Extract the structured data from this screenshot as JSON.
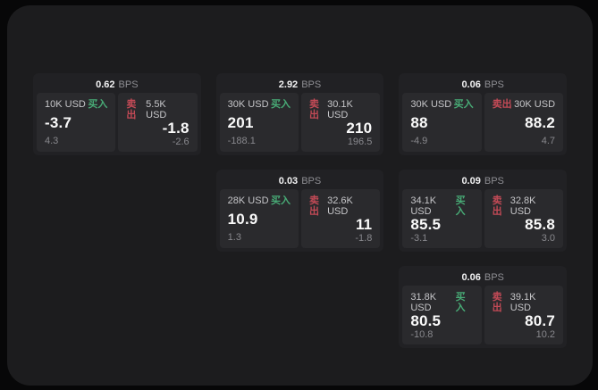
{
  "page": {
    "background": "#070708",
    "panel_background": "#1c1c1e",
    "card_background": "#212124",
    "quote_panel_background": "#2a2a2d"
  },
  "colors": {
    "buy_accent": "#48ab76",
    "sell_accent": "#c34a56",
    "price_text": "#fafafa",
    "muted_text": "#88888d"
  },
  "labels": {
    "bps_unit": "BPS",
    "buy": "买入",
    "sell": "卖出"
  },
  "cards": [
    {
      "row": 1,
      "col": 1,
      "bps_value": "0.62",
      "bps_unit": "BPS",
      "buy": {
        "size": "10K USD",
        "side_label": "买入",
        "price": "-3.7",
        "delta": "4.3"
      },
      "sell": {
        "size": "5.5K USD",
        "side_label": "卖出",
        "price": "-1.8",
        "delta": "-2.6"
      }
    },
    {
      "row": 1,
      "col": 2,
      "bps_value": "2.92",
      "bps_unit": "BPS",
      "buy": {
        "size": "30K USD",
        "side_label": "买入",
        "price": "201",
        "delta": "-188.1"
      },
      "sell": {
        "size": "30.1K USD",
        "side_label": "卖出",
        "price": "210",
        "delta": "196.5"
      }
    },
    {
      "row": 1,
      "col": 3,
      "bps_value": "0.06",
      "bps_unit": "BPS",
      "buy": {
        "size": "30K USD",
        "side_label": "买入",
        "price": "88",
        "delta": "-4.9"
      },
      "sell": {
        "size": "30K USD",
        "side_label": "卖出",
        "price": "88.2",
        "delta": "4.7"
      }
    },
    {
      "row": 2,
      "col": 2,
      "bps_value": "0.03",
      "bps_unit": "BPS",
      "buy": {
        "size": "28K USD",
        "side_label": "买入",
        "price": "10.9",
        "delta": "1.3"
      },
      "sell": {
        "size": "32.6K USD",
        "side_label": "卖出",
        "price": "11",
        "delta": "-1.8"
      }
    },
    {
      "row": 2,
      "col": 3,
      "bps_value": "0.09",
      "bps_unit": "BPS",
      "buy": {
        "size": "34.1K USD",
        "side_label": "买入",
        "price": "85.5",
        "delta": "-3.1"
      },
      "sell": {
        "size": "32.8K USD",
        "side_label": "卖出",
        "price": "85.8",
        "delta": "3.0"
      }
    },
    {
      "row": 3,
      "col": 3,
      "bps_value": "0.06",
      "bps_unit": "BPS",
      "buy": {
        "size": "31.8K USD",
        "side_label": "买入",
        "price": "80.5",
        "delta": "-10.8"
      },
      "sell": {
        "size": "39.1K USD",
        "side_label": "卖出",
        "price": "80.7",
        "delta": "10.2"
      }
    }
  ]
}
